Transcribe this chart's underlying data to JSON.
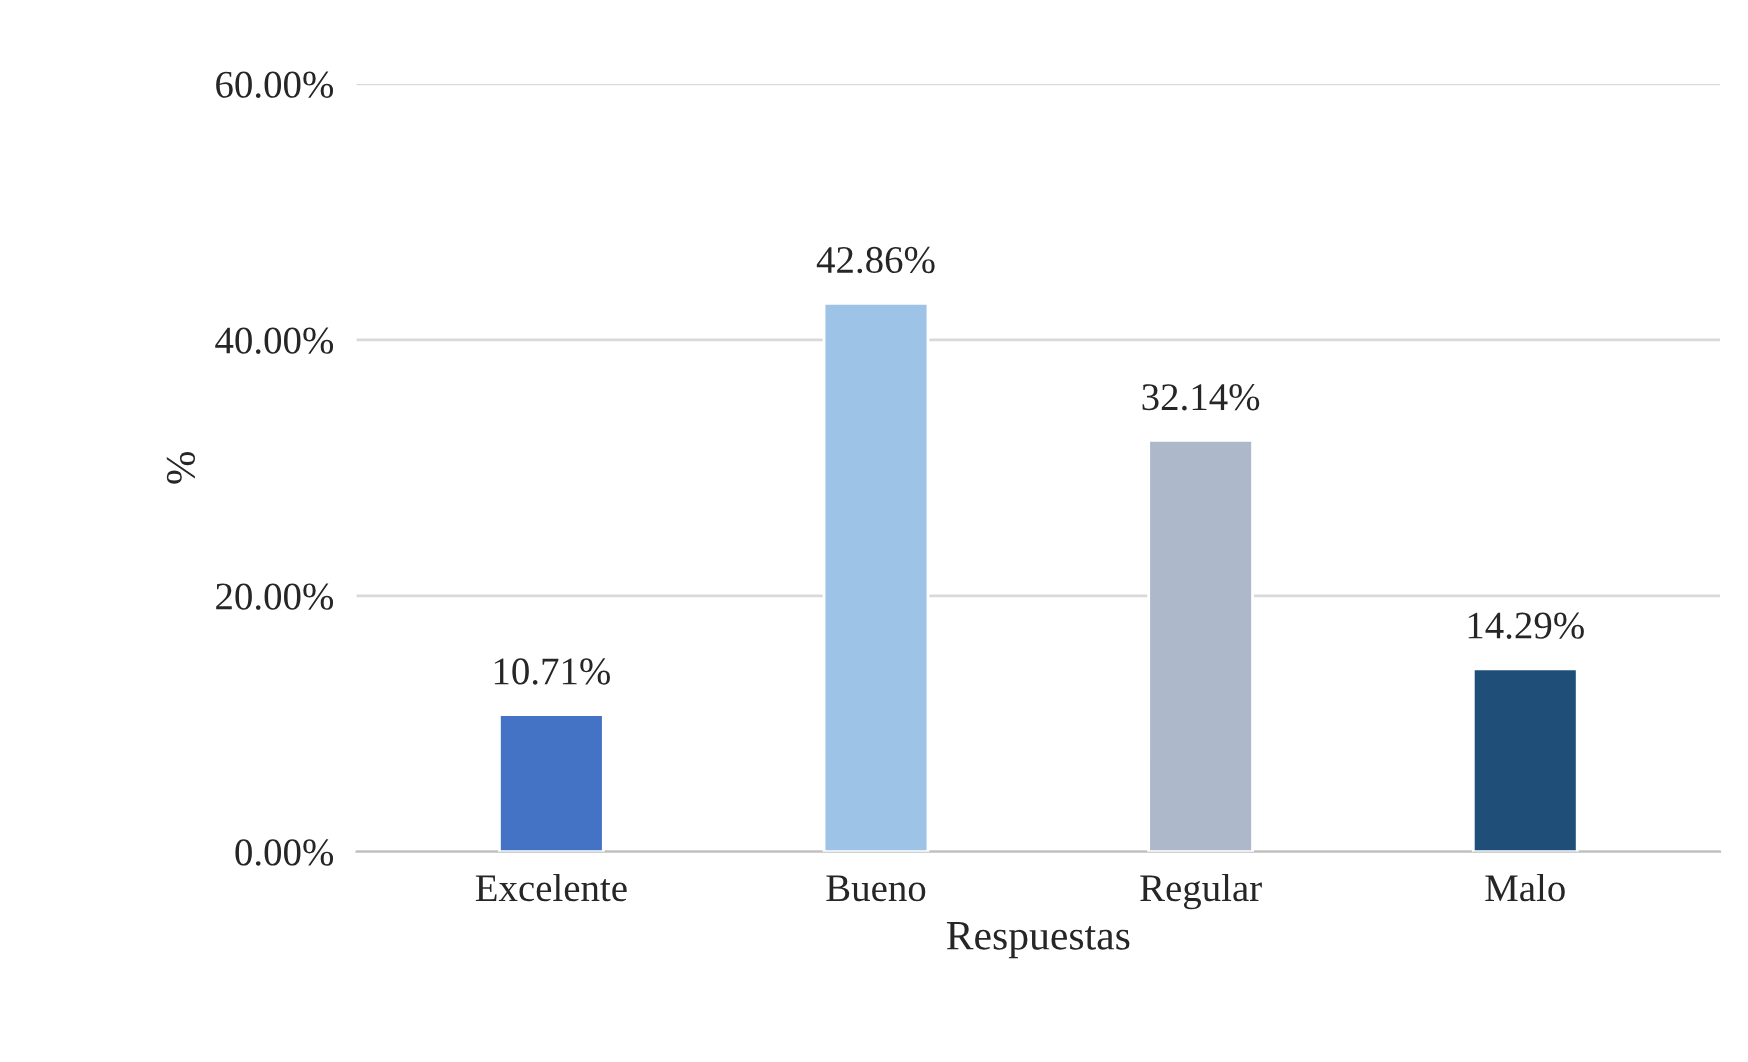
{
  "chart_data": {
    "type": "bar",
    "xlabel": "Respuestas",
    "ylabel": "%",
    "categories": [
      "Excelente",
      "Bueno",
      "Regular",
      "Malo"
    ],
    "values": [
      10.71,
      42.86,
      32.14,
      14.29
    ],
    "colors": [
      "#4472c4",
      "#9dc3e6",
      "#adb9ca",
      "#1f4e79"
    ],
    "value_labels": [
      "10.71%",
      "42.86%",
      "32.14%",
      "14.29%"
    ],
    "ylim": [
      0,
      60
    ],
    "yticks": [
      {
        "value": 0,
        "label": "0.00%"
      },
      {
        "value": 20,
        "label": "20.00%"
      },
      {
        "value": 40,
        "label": "40.00%"
      },
      {
        "value": 60,
        "label": "60.00%"
      }
    ],
    "grid": "y",
    "legend": false
  }
}
